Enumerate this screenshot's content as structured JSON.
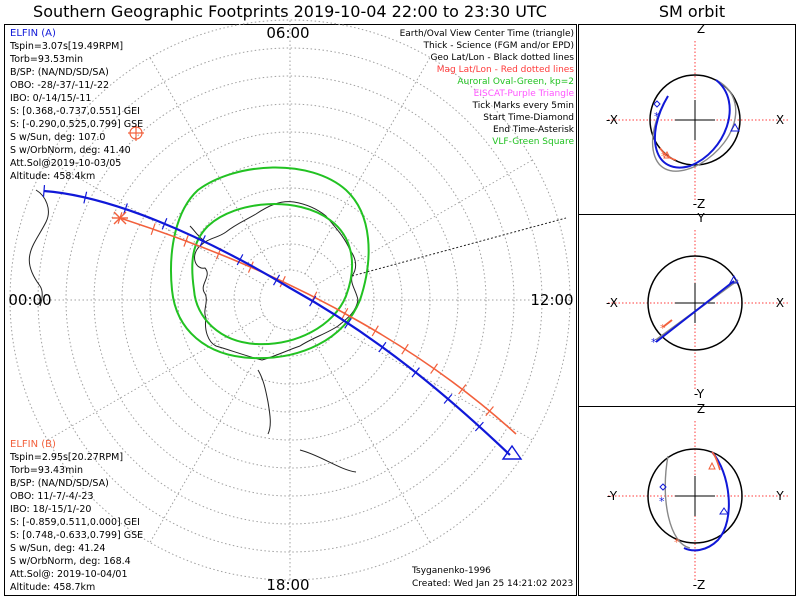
{
  "page_title": "Southern Geographic Footprints 2019-10-04 22:00 to 23:30 UTC",
  "orbit_title": "SM orbit",
  "colors": {
    "elfin_a": "#1018d8",
    "elfin_b": "#f2603c",
    "aurora": "#22c222",
    "grid": "#9a9a9a",
    "mag_grid": "#ff3b3b",
    "purple": "#ff55ff",
    "land": "#222222",
    "mid_line": "#888888"
  },
  "map": {
    "hour_top": "06:00",
    "hour_left": "00:00",
    "hour_right": "12:00",
    "hour_bottom": "18:00",
    "right_legend": [
      {
        "text": "Earth/Oval View Center Time (triangle)",
        "color": "#000000"
      },
      {
        "text": "Thick - Science (FGM and/or EPD)",
        "color": "#000000"
      },
      {
        "text": "Geo Lat/Lon - Black dotted lines",
        "color": "#000000"
      },
      {
        "text": "Mag Lat/Lon - Red dotted lines",
        "color": "#ff3b3b"
      },
      {
        "text": "Auroral Oval-Green, kp=2",
        "color": "#22c222"
      },
      {
        "text": "EISCAT-Purple Triangle",
        "color": "#ff55ff"
      },
      {
        "text": "Tick Marks every 5min",
        "color": "#000000"
      },
      {
        "text": "Start Time-Diamond",
        "color": "#000000"
      },
      {
        "text": "End Time-Asterisk",
        "color": "#000000"
      },
      {
        "text": "VLF-Green Square",
        "color": "#22c222"
      }
    ],
    "elfin_a": {
      "name": "ELFIN (A)",
      "lines": [
        "Tspin=3.07s[19.49RPM]",
        "Torb=93.53min",
        "B/SP: (NA/ND/SD/SA)",
        "OBO: -28/-37/-11/-22",
        "IBO: 0/-14/15/-11",
        "S: [0.368,-0.737,0.551] GEI",
        "S: [-0.290,0.525,0.799] GSE",
        "S w/Sun, deg: 107.0",
        "S w/OrbNorm, deg: 41.40",
        "Att.Sol@2019-10-03/05",
        "Altitude: 458.4km"
      ]
    },
    "elfin_b": {
      "name": "ELFIN (B)",
      "lines": [
        "Tspin=2.95s[20.27RPM]",
        "Torb=93.43min",
        "B/SP: (NA/ND/SD/SA)",
        "OBO: 11/-7/-4/-23",
        "IBO: 18/-15/1/-20",
        "S: [-0.859,0.511,0.000] GEI",
        "S: [0.748,-0.633,0.799] GSE",
        "S w/Sun, deg: 41.24",
        "S w/OrbNorm, deg: 168.4",
        "Att.Sol@: 2019-10-04/01",
        "Altitude: 458.7km"
      ]
    },
    "credit": "Tsyganenko-1996",
    "created": "Created: Wed Jan 25 14:21:02 2023"
  },
  "orbit_panels": [
    {
      "top": "Z",
      "bottom": "-Z",
      "left": "-X",
      "right": "X"
    },
    {
      "top": "Y",
      "bottom": "-Y",
      "left": "-X",
      "right": "X"
    },
    {
      "top": "Z",
      "bottom": "-Z",
      "left": "-Y",
      "right": "Y"
    }
  ],
  "chart_data": {
    "type": "line",
    "title": "Southern Geographic Footprints 2019-10-04 22:00 to 23:30 UTC",
    "projection": "polar, south pole centered",
    "local_time_labels": [
      "00:00",
      "06:00",
      "12:00",
      "18:00"
    ],
    "grid": true,
    "series": [
      {
        "name": "ELFIN (A)",
        "color": "#1018d8",
        "start_marker": "diamond",
        "end_marker": "asterisk"
      },
      {
        "name": "ELFIN (B)",
        "color": "#f2603c",
        "start_marker": "diamond",
        "end_marker": "asterisk"
      }
    ],
    "subplots": [
      "SM orbit X-Z",
      "SM orbit X-Y",
      "SM orbit Y-Z"
    ]
  }
}
